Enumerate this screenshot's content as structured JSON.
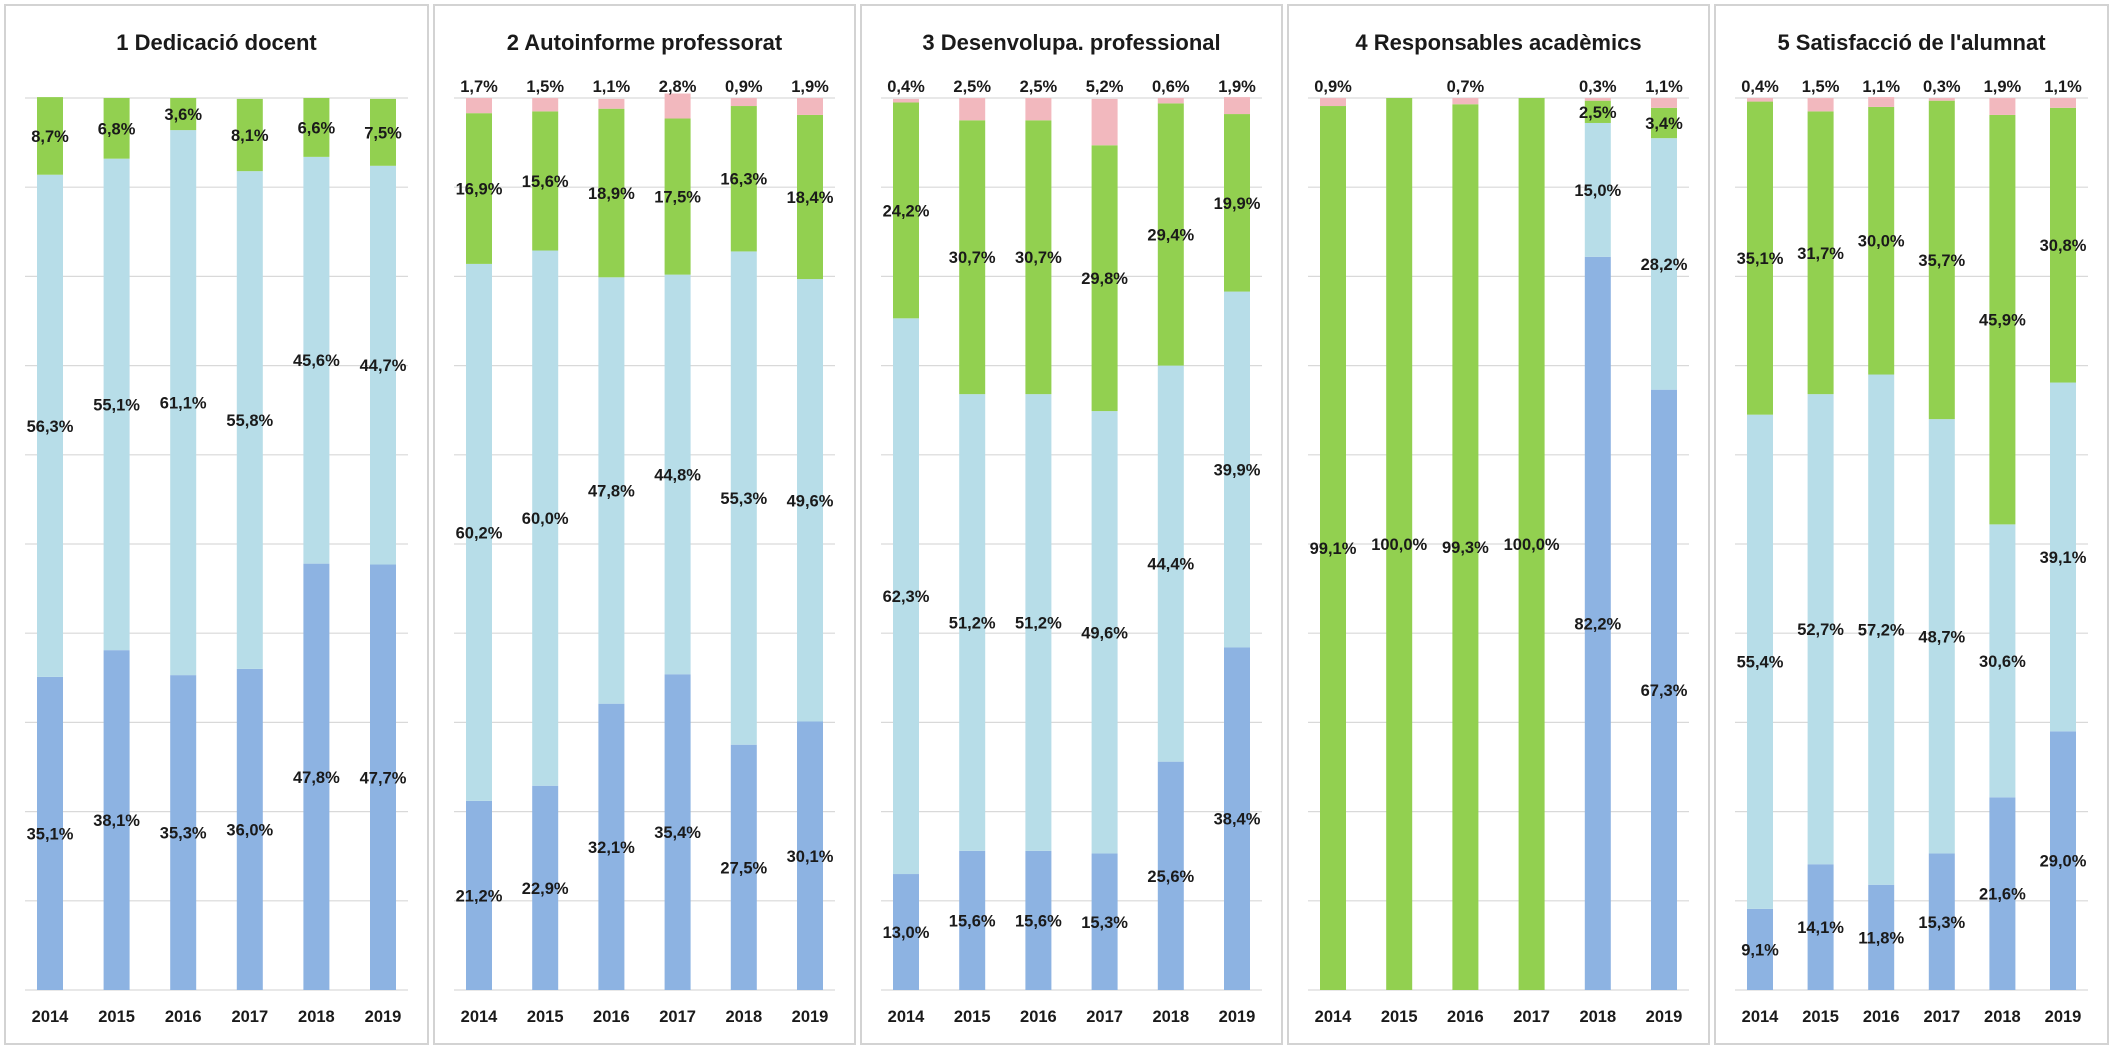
{
  "colors": {
    "dark_blue": "#8db3e2",
    "light_blue": "#b7dde8",
    "green": "#92d050",
    "pink": "#f2b8be"
  },
  "chart_data": [
    {
      "type": "bar",
      "stacked": true,
      "title": "1 Dedicació docent",
      "categories": [
        "2014",
        "2015",
        "2016",
        "2017",
        "2018",
        "2019"
      ],
      "ylim": [
        0,
        100
      ],
      "grid": true,
      "series": [
        {
          "key": "dark_blue",
          "values": [
            35.1,
            38.1,
            35.3,
            36.0,
            47.8,
            47.7
          ],
          "labels": [
            "35,1%",
            "38,1%",
            "35,3%",
            "36,0%",
            "47,8%",
            "47,7%"
          ]
        },
        {
          "key": "light_blue",
          "values": [
            56.3,
            55.1,
            61.1,
            55.8,
            45.6,
            44.7
          ],
          "labels": [
            "56,3%",
            "55,1%",
            "61,1%",
            "55,8%",
            "45,6%",
            "44,7%"
          ]
        },
        {
          "key": "green",
          "values": [
            8.7,
            6.8,
            3.6,
            8.1,
            6.6,
            7.5
          ],
          "labels": [
            "8,7%",
            "6,8%",
            "3,6%",
            "8,1%",
            "6,6%",
            "7,5%"
          ]
        }
      ]
    },
    {
      "type": "bar",
      "stacked": true,
      "title": "2 Autoinforme professorat",
      "categories": [
        "2014",
        "2015",
        "2016",
        "2017",
        "2018",
        "2019"
      ],
      "ylim": [
        0,
        100
      ],
      "grid": true,
      "series": [
        {
          "key": "dark_blue",
          "values": [
            21.2,
            22.9,
            32.1,
            35.4,
            27.5,
            30.1
          ],
          "labels": [
            "21,2%",
            "22,9%",
            "32,1%",
            "35,4%",
            "27,5%",
            "30,1%"
          ]
        },
        {
          "key": "light_blue",
          "values": [
            60.2,
            60.0,
            47.8,
            44.8,
            55.3,
            49.6
          ],
          "labels": [
            "60,2%",
            "60,0%",
            "47,8%",
            "44,8%",
            "55,3%",
            "49,6%"
          ]
        },
        {
          "key": "green",
          "values": [
            16.9,
            15.6,
            18.9,
            17.5,
            16.3,
            18.4
          ],
          "labels": [
            "16,9%",
            "15,6%",
            "18,9%",
            "17,5%",
            "16,3%",
            "18,4%"
          ]
        },
        {
          "key": "pink",
          "values": [
            1.7,
            1.5,
            1.1,
            2.8,
            0.9,
            1.9
          ],
          "labels": [
            "1,7%",
            "1,5%",
            "1,1%",
            "2,8%",
            "0,9%",
            "1,9%"
          ]
        }
      ]
    },
    {
      "type": "bar",
      "stacked": true,
      "title": "3  Desenvolupa. professional",
      "categories": [
        "2014",
        "2015",
        "2016",
        "2017",
        "2018",
        "2019"
      ],
      "ylim": [
        0,
        100
      ],
      "grid": true,
      "series": [
        {
          "key": "dark_blue",
          "values": [
            13.0,
            15.6,
            15.6,
            15.3,
            25.6,
            38.4
          ],
          "labels": [
            "13,0%",
            "15,6%",
            "15,6%",
            "15,3%",
            "25,6%",
            "38,4%"
          ]
        },
        {
          "key": "light_blue",
          "values": [
            62.3,
            51.2,
            51.2,
            49.6,
            44.4,
            39.9
          ],
          "labels": [
            "62,3%",
            "51,2%",
            "51,2%",
            "49,6%",
            "44,4%",
            "39,9%"
          ]
        },
        {
          "key": "green",
          "values": [
            24.2,
            30.7,
            30.7,
            29.8,
            29.4,
            19.9
          ],
          "labels": [
            "24,2%",
            "30,7%",
            "30,7%",
            "29,8%",
            "29,4%",
            "19,9%"
          ]
        },
        {
          "key": "pink",
          "values": [
            0.4,
            2.5,
            2.5,
            5.2,
            0.6,
            1.9
          ],
          "labels": [
            "0,4%",
            "2,5%",
            "2,5%",
            "5,2%",
            "0,6%",
            "1,9%"
          ]
        }
      ]
    },
    {
      "type": "bar",
      "stacked": true,
      "title": "4 Responsables acadèmics",
      "categories": [
        "2014",
        "2015",
        "2016",
        "2017",
        "2018",
        "2019"
      ],
      "ylim": [
        0,
        100
      ],
      "grid": true,
      "series": [
        {
          "key": "dark_blue",
          "values": [
            0,
            0,
            0,
            0,
            82.2,
            67.3
          ],
          "labels": [
            "",
            "",
            "",
            "",
            "82,2%",
            "67,3%"
          ]
        },
        {
          "key": "light_blue",
          "values": [
            0,
            0,
            0,
            0,
            15.0,
            28.2
          ],
          "labels": [
            "",
            "",
            "",
            "",
            "15,0%",
            "28,2%"
          ]
        },
        {
          "key": "green",
          "values": [
            99.1,
            100.0,
            99.3,
            100.0,
            2.5,
            3.4
          ],
          "labels": [
            "99,1%",
            "100,0%",
            "99,3%",
            "100,0%",
            "2,5%",
            "3,4%"
          ]
        },
        {
          "key": "pink",
          "values": [
            0.9,
            0,
            0.7,
            0,
            0.3,
            1.1
          ],
          "labels": [
            "0,9%",
            "",
            "0,7%",
            "",
            "0,3%",
            "1,1%"
          ]
        }
      ]
    },
    {
      "type": "bar",
      "stacked": true,
      "title": "5 Satisfacció de l'alumnat",
      "categories": [
        "2014",
        "2015",
        "2016",
        "2017",
        "2018",
        "2019"
      ],
      "ylim": [
        0,
        100
      ],
      "grid": true,
      "series": [
        {
          "key": "dark_blue",
          "values": [
            9.1,
            14.1,
            11.8,
            15.3,
            21.6,
            29.0
          ],
          "labels": [
            "9,1%",
            "14,1%",
            "11,8%",
            "15,3%",
            "21,6%",
            "29,0%"
          ]
        },
        {
          "key": "light_blue",
          "values": [
            55.4,
            52.7,
            57.2,
            48.7,
            30.6,
            39.1
          ],
          "labels": [
            "55,4%",
            "52,7%",
            "57,2%",
            "48,7%",
            "30,6%",
            "39,1%"
          ]
        },
        {
          "key": "green",
          "values": [
            35.1,
            31.7,
            30.0,
            35.7,
            45.9,
            30.8
          ],
          "labels": [
            "35,1%",
            "31,7%",
            "30,0%",
            "35,7%",
            "45,9%",
            "30,8%"
          ]
        },
        {
          "key": "pink",
          "values": [
            0.4,
            1.5,
            1.1,
            0.3,
            1.9,
            1.1
          ],
          "labels": [
            "0,4%",
            "1,5%",
            "1,1%",
            "0,3%",
            "1,9%",
            "1,1%"
          ]
        }
      ]
    }
  ]
}
